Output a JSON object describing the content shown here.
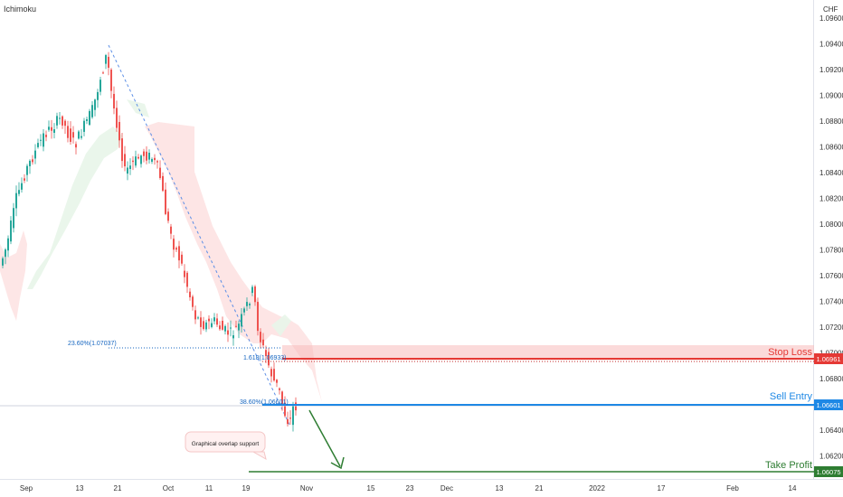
{
  "header": {
    "indicator": "Ichimoku",
    "currency": "CHF"
  },
  "chart_data": {
    "type": "candlestick",
    "y_axis": {
      "range": [
        1.0605,
        1.0975
      ],
      "ticks": [
        "1.09600",
        "1.09400",
        "1.09200",
        "1.09000",
        "1.08800",
        "1.08600",
        "1.08400",
        "1.08200",
        "1.08000",
        "1.07800",
        "1.07600",
        "1.07400",
        "1.07200",
        "1.07000",
        "1.06800",
        "1.06600",
        "1.06400",
        "1.06200"
      ]
    },
    "x_axis": {
      "ticks": [
        "Sep",
        "13",
        "21",
        "Oct",
        "11",
        "19",
        "Nov",
        "15",
        "23",
        "Dec",
        "13",
        "21",
        "2022",
        "17",
        "Feb",
        "14"
      ]
    },
    "levels": [
      {
        "name": "Stop Loss",
        "value": 1.06961,
        "label": "1.06961",
        "color": "#e53935"
      },
      {
        "name": "Sell Entry",
        "value": 1.06601,
        "label": "1.06601",
        "color": "#1e88e5"
      },
      {
        "name": "Take Profit",
        "value": 1.06075,
        "label": "1.06075",
        "color": "#2e7d32"
      }
    ],
    "fib_labels": [
      {
        "text": "23.60%(1.07037)",
        "value": 1.07037
      },
      {
        "text": "1.618(1.06933)",
        "value": 1.06933
      },
      {
        "text": "38.60%(1.06601)",
        "value": 1.06601
      }
    ],
    "annotation": "Graphical overlap support",
    "colors": {
      "up": "#26a69a",
      "down": "#ef5350",
      "cloud_green": "#e8f5e9",
      "cloud_red": "#fde2e2",
      "trend": "#5b8ee6"
    }
  }
}
